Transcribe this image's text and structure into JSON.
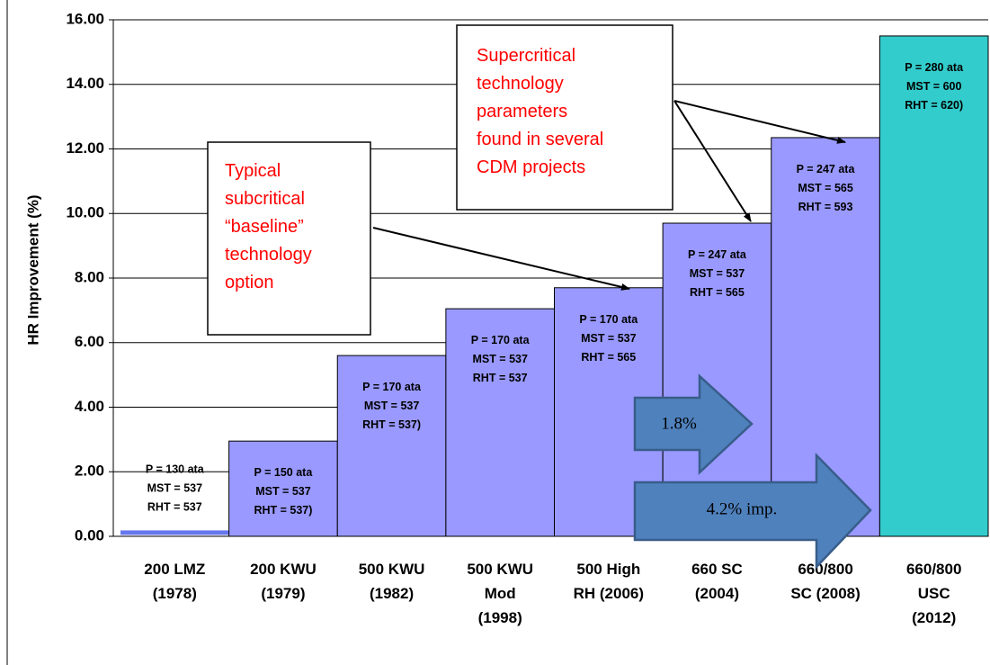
{
  "chart_data": {
    "type": "bar",
    "y_label": "HR Improvement (%)",
    "categories": [
      "200 LMZ\n(1978)",
      "200 KWU\n(1979)",
      "500 KWU\n(1982)",
      "500 KWU\nMod\n(1998)",
      "500 High\nRH (2006)",
      "660 SC\n(2004)",
      "660/800\nSC (2008)",
      "660/800\nUSC\n(2012)"
    ],
    "values": [
      0.1,
      2.95,
      5.6,
      7.05,
      7.7,
      9.7,
      12.35,
      15.5
    ],
    "colors": [
      "#6677ee",
      "#9999ff",
      "#9999ff",
      "#9999ff",
      "#9999ff",
      "#9999ff",
      "#9999ff",
      "#33cccc"
    ],
    "bar_labels": [
      "P = 130 ata\nMST = 537\nRHT = 537",
      "P = 150 ata\nMST = 537\nRHT = 537)",
      "P = 170 ata\nMST = 537\nRHT = 537)",
      "P = 170 ata\nMST = 537\nRHT = 537",
      "P = 170 ata\nMST = 537\nRHT = 565",
      "P = 247  ata\nMST = 537\nRHT = 565",
      "P = 247 ata\nMST = 565\nRHT = 593",
      "P = 280 ata\nMST = 600\nRHT = 620)"
    ],
    "ylim": [
      0,
      16
    ],
    "yticks": [
      {
        "value": 0,
        "label": "0.00"
      },
      {
        "value": 2,
        "label": "2.00"
      },
      {
        "value": 4,
        "label": "4.00"
      },
      {
        "value": 6,
        "label": "6.00"
      },
      {
        "value": 8,
        "label": "8.00"
      },
      {
        "value": 10,
        "label": "10.00"
      },
      {
        "value": 12,
        "label": "12.00"
      },
      {
        "value": 14,
        "label": "14.00"
      },
      {
        "value": 16,
        "label": "16.00"
      }
    ],
    "grid": true,
    "callouts": [
      "Typical\nsubcritical\n“baseline”\ntechnology\noption",
      "Supercritical\ntechnology\nparameters\nfound  in  several\nCDM projects"
    ],
    "arrow_labels": [
      "1.8%",
      "4.2% imp."
    ]
  }
}
